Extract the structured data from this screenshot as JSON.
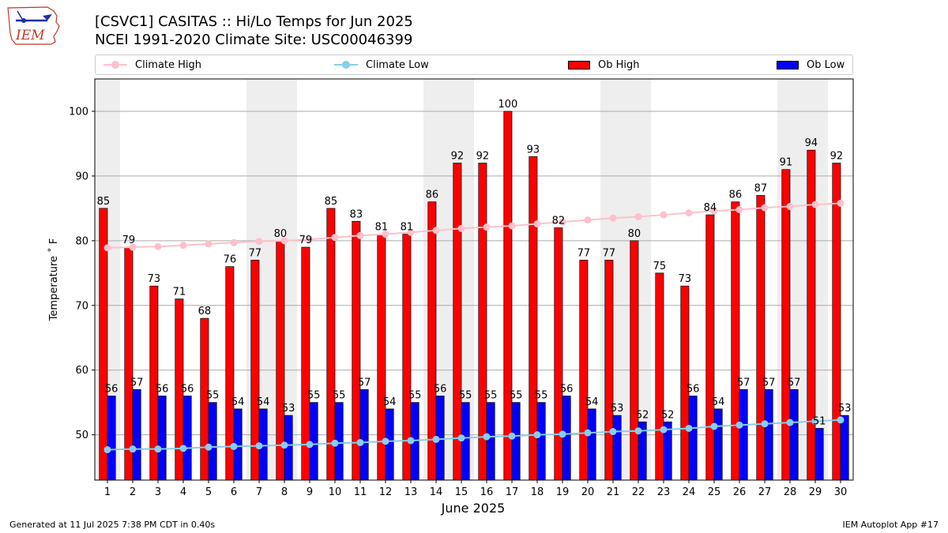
{
  "header": {
    "logo_text": "IEM",
    "title_line1": "[CSVC1] CASITAS :: Hi/Lo Temps for Jun 2025",
    "title_line2": "NCEI 1991-2020 Climate Site: USC00046399"
  },
  "legend": {
    "climate_high": "Climate High",
    "climate_low": "Climate Low",
    "ob_high": "Ob High",
    "ob_low": "Ob Low"
  },
  "colors": {
    "ob_high": "#ff0000",
    "ob_low": "#0000ff",
    "climate_high": "#ffc0cb",
    "climate_low": "#87ceeb",
    "weekend_band": "#eeeeee",
    "grid": "#aaaaaa"
  },
  "footer": {
    "left": "Generated at 11 Jul 2025 7:38 PM CDT in 0.40s",
    "right": "IEM Autoplot App #17"
  },
  "chart_data": {
    "type": "bar",
    "xlabel": "June 2025",
    "ylabel": "Temperature ˚ F",
    "ylim": [
      43,
      105
    ],
    "yticks": [
      50,
      60,
      70,
      80,
      90,
      100
    ],
    "grid": "horizontal",
    "legend_position": "top",
    "categories": [
      "1",
      "2",
      "3",
      "4",
      "5",
      "6",
      "7",
      "8",
      "9",
      "10",
      "11",
      "12",
      "13",
      "14",
      "15",
      "16",
      "17",
      "18",
      "19",
      "20",
      "21",
      "22",
      "23",
      "24",
      "25",
      "26",
      "27",
      "28",
      "29",
      "30"
    ],
    "weekend_days": [
      1,
      7,
      8,
      14,
      15,
      21,
      22,
      28,
      29
    ],
    "series": [
      {
        "name": "Ob High",
        "kind": "bar",
        "values": [
          85,
          79,
          73,
          71,
          68,
          76,
          77,
          80,
          79,
          85,
          83,
          81,
          81,
          86,
          92,
          92,
          100,
          93,
          82,
          77,
          77,
          80,
          75,
          73,
          84,
          86,
          87,
          91,
          94,
          92
        ]
      },
      {
        "name": "Ob Low",
        "kind": "bar",
        "values": [
          56,
          57,
          56,
          56,
          55,
          54,
          54,
          53,
          55,
          55,
          57,
          54,
          55,
          56,
          55,
          55,
          55,
          55,
          56,
          54,
          53,
          52,
          52,
          56,
          54,
          57,
          57,
          57,
          51,
          53
        ]
      },
      {
        "name": "Climate High",
        "kind": "line",
        "values": [
          78.9,
          79.0,
          79.1,
          79.3,
          79.5,
          79.7,
          79.9,
          80.0,
          80.2,
          80.5,
          80.8,
          81.0,
          81.3,
          81.6,
          81.9,
          82.1,
          82.3,
          82.6,
          82.9,
          83.2,
          83.5,
          83.7,
          84.0,
          84.3,
          84.6,
          84.8,
          85.1,
          85.3,
          85.6,
          85.8
        ]
      },
      {
        "name": "Climate Low",
        "kind": "line",
        "values": [
          47.7,
          47.8,
          47.8,
          47.9,
          48.1,
          48.2,
          48.3,
          48.4,
          48.5,
          48.7,
          48.8,
          49.0,
          49.1,
          49.3,
          49.5,
          49.7,
          49.8,
          50.0,
          50.1,
          50.3,
          50.5,
          50.6,
          50.8,
          51.0,
          51.3,
          51.5,
          51.7,
          51.9,
          52.1,
          52.3
        ]
      }
    ]
  }
}
